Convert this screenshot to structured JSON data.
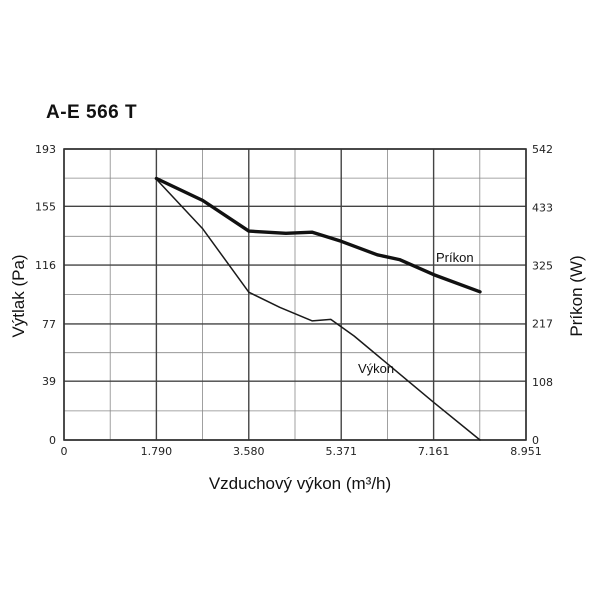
{
  "title": "A-E 566 T",
  "chart_data": {
    "type": "line",
    "title": "A-E 566 T",
    "xlabel": "Vzduchový výkon (m³/h)",
    "ylabel": "Výtlak (Pa)",
    "y2label": "Príkon (W)",
    "x_ticks": [
      "0",
      "1.790",
      "3.580",
      "5.371",
      "7.161",
      "8.951"
    ],
    "x_tick_values": [
      0,
      1790,
      3580,
      5371,
      7161,
      8951
    ],
    "y_ticks": [
      "0",
      "39",
      "77",
      "116",
      "155",
      "193"
    ],
    "y_tick_values": [
      0,
      39,
      77,
      116,
      155,
      193
    ],
    "y2_ticks": [
      "0",
      "108",
      "217",
      "325",
      "433",
      "542"
    ],
    "y2_tick_values": [
      0,
      108,
      217,
      325,
      433,
      542
    ],
    "xlim": [
      0,
      8951
    ],
    "ylim": [
      0,
      193
    ],
    "y2lim": [
      0,
      542
    ],
    "grid": true,
    "series": [
      {
        "name": "Výkon",
        "axis": "left",
        "color": "#1a1a1a",
        "x": [
          1790,
          2690,
          3580,
          4180,
          4810,
          5170,
          5620,
          6250,
          7160,
          8060
        ],
        "y": [
          173,
          140,
          98,
          88,
          79,
          80,
          69,
          51,
          25,
          0
        ]
      },
      {
        "name": "Príkon",
        "axis": "right",
        "color": "#111111",
        "x": [
          1790,
          2690,
          3580,
          4300,
          4810,
          5370,
          6070,
          6500,
          7160,
          8060
        ],
        "y": [
          487,
          446,
          389,
          385,
          387,
          370,
          345,
          336,
          308,
          276
        ]
      }
    ]
  }
}
